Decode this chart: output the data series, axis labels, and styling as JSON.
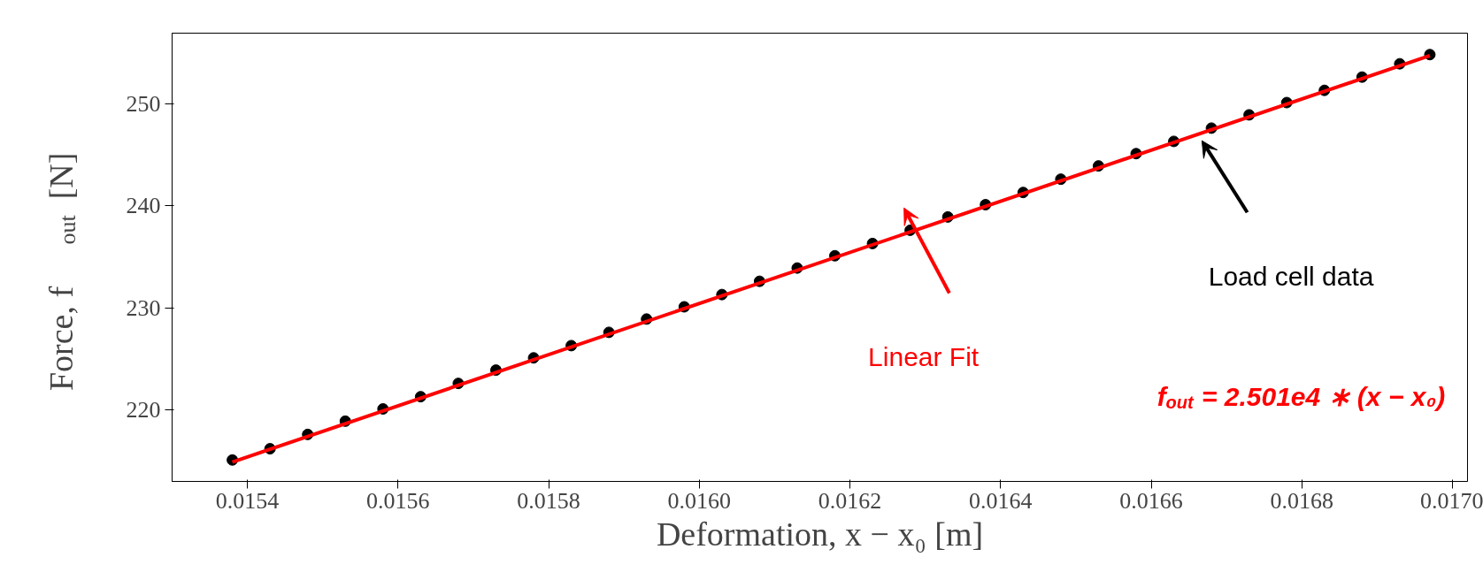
{
  "chart_data": {
    "type": "scatter",
    "xlabel": "Deformation, x − x₀ [m]",
    "ylabel": "Force,  f$_{out}$ [N]",
    "xlim": [
      0.0153,
      0.01702
    ],
    "ylim": [
      213,
      256.9
    ],
    "xticks": [
      {
        "value": 0.0154,
        "label": "0.0154"
      },
      {
        "value": 0.0156,
        "label": "0.0156"
      },
      {
        "value": 0.0158,
        "label": "0.0158"
      },
      {
        "value": 0.016,
        "label": "0.0160"
      },
      {
        "value": 0.0162,
        "label": "0.0162"
      },
      {
        "value": 0.0164,
        "label": "0.0164"
      },
      {
        "value": 0.0166,
        "label": "0.0166"
      },
      {
        "value": 0.0168,
        "label": "0.0168"
      },
      {
        "value": 0.017,
        "label": "0.0170"
      }
    ],
    "yticks": [
      220,
      230,
      240,
      250
    ],
    "grid": false,
    "marker": "circle",
    "series": [
      {
        "color": "#000000",
        "x": [
          0.01538,
          0.01543,
          0.01548,
          0.01553,
          0.01558,
          0.01563,
          0.01568,
          0.01573,
          0.01578,
          0.01583,
          0.01588,
          0.01593,
          0.01598,
          0.01603,
          0.01608,
          0.01613,
          0.01618,
          0.01623,
          0.01628,
          0.01633,
          0.01638,
          0.01643,
          0.01648,
          0.01653,
          0.01658,
          0.01663,
          0.01668,
          0.01673,
          0.01678,
          0.01683,
          0.01688,
          0.01693,
          0.01697
        ],
        "values": [
          215.1,
          216.2,
          217.6,
          218.9,
          220.1,
          221.3,
          222.6,
          223.9,
          225.1,
          226.3,
          227.6,
          228.9,
          230.1,
          231.3,
          232.6,
          233.9,
          235.1,
          236.3,
          237.6,
          238.9,
          240.1,
          241.3,
          242.6,
          243.9,
          245.1,
          246.3,
          247.6,
          248.9,
          250.1,
          251.3,
          252.6,
          253.9,
          254.8
        ]
      },
      {
        "type": "line",
        "marker": "none",
        "color": "#ff0000",
        "x": [
          0.01538,
          0.01697
        ],
        "values": [
          214.9,
          254.7
        ]
      }
    ],
    "annotations": [
      "Load cell data",
      "Linear Fit",
      "f$_{out}$ = 2.501e4 ∗ (x − x₀)"
    ]
  }
}
